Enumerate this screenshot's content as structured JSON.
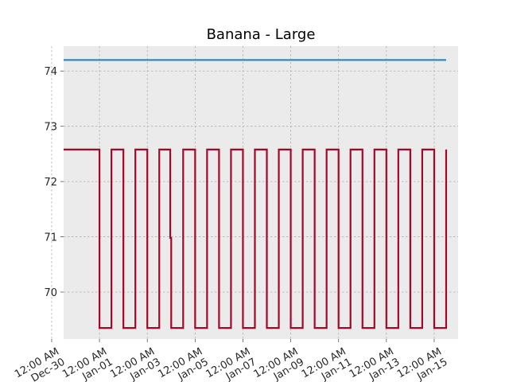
{
  "chart_data": {
    "type": "line",
    "title": "Banana - Large",
    "xlabel": "",
    "ylabel": "",
    "x_axis": {
      "type": "date",
      "range": [
        "2021-12-30T12:00",
        "2022-01-16T00:00"
      ],
      "tick_labels": [
        "12:00 AM\nDec-30",
        "12:00 AM\nJan-01",
        "12:00 AM\nJan-03",
        "12:00 AM\nJan-05",
        "12:00 AM\nJan-07",
        "12:00 AM\nJan-09",
        "12:00 AM\nJan-11",
        "12:00 AM\nJan-13",
        "12:00 AM\nJan-15"
      ]
    },
    "y_axis": {
      "range": [
        69.15,
        74.45
      ],
      "ticks": [
        70,
        71,
        72,
        73,
        74
      ]
    },
    "grid": true,
    "colors": {
      "axes_background": "#ebebeb",
      "grid": "#b0b0b0",
      "series_1": "#348abd",
      "series_2": "#a60628"
    },
    "series": [
      {
        "points": [
          [
            "2021-12-30T12:00",
            74.2
          ],
          [
            "2022-01-15T12:00",
            74.2
          ]
        ]
      },
      {
        "step": "post",
        "points": [
          [
            "2021-12-30T12:00",
            72.58
          ],
          [
            "2022-01-01T00:00",
            69.35
          ],
          [
            "2022-01-01T12:00",
            72.58
          ],
          [
            "2022-01-02T00:00",
            69.35
          ],
          [
            "2022-01-02T12:00",
            72.58
          ],
          [
            "2022-01-03T00:00",
            69.35
          ],
          [
            "2022-01-03T12:00",
            72.58
          ],
          [
            "2022-01-03T23:00",
            70.98
          ],
          [
            "2022-01-04T00:00",
            69.35
          ],
          [
            "2022-01-04T12:00",
            72.58
          ],
          [
            "2022-01-05T00:00",
            69.35
          ],
          [
            "2022-01-05T12:00",
            72.58
          ],
          [
            "2022-01-06T00:00",
            69.35
          ],
          [
            "2022-01-06T12:00",
            72.58
          ],
          [
            "2022-01-07T00:00",
            69.35
          ],
          [
            "2022-01-07T12:00",
            72.58
          ],
          [
            "2022-01-08T00:00",
            69.35
          ],
          [
            "2022-01-08T12:00",
            72.58
          ],
          [
            "2022-01-09T00:00",
            69.35
          ],
          [
            "2022-01-09T12:00",
            72.58
          ],
          [
            "2022-01-10T00:00",
            69.35
          ],
          [
            "2022-01-10T12:00",
            72.58
          ],
          [
            "2022-01-11T00:00",
            69.35
          ],
          [
            "2022-01-11T12:00",
            72.58
          ],
          [
            "2022-01-12T00:00",
            69.35
          ],
          [
            "2022-01-12T12:00",
            72.58
          ],
          [
            "2022-01-13T00:00",
            69.35
          ],
          [
            "2022-01-13T12:00",
            72.58
          ],
          [
            "2022-01-14T00:00",
            69.35
          ],
          [
            "2022-01-14T12:00",
            72.58
          ],
          [
            "2022-01-15T00:00",
            69.35
          ],
          [
            "2022-01-15T12:00",
            72.58
          ]
        ]
      }
    ]
  }
}
